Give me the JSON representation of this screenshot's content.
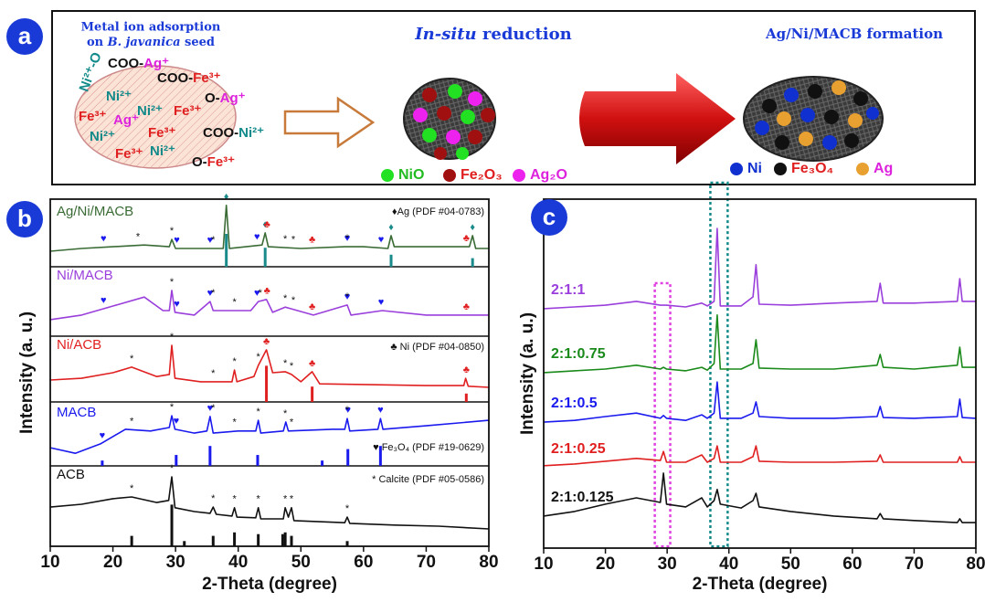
{
  "schematic": {
    "panel_label": "a",
    "heading1": [
      "Metal ion adsorption",
      [
        "on ",
        "B. javanica",
        " seed"
      ]
    ],
    "heading2": [
      "In-situ",
      " reduction"
    ],
    "heading3": "Ag/Ni/MACB formation",
    "ions": [
      [
        {
          "text": "COO-",
          "color": "#111111"
        },
        {
          "text": "Ag⁺",
          "color": "#dd22dd"
        }
      ],
      [
        {
          "text": "COO-",
          "color": "#111111"
        },
        {
          "text": "Fe³⁺",
          "color": "#e02020"
        }
      ],
      [
        {
          "text": "Ni²⁺",
          "color": "#138a8a"
        }
      ],
      [
        {
          "text": "O-",
          "color": "#111111"
        },
        {
          "text": "Ag⁺",
          "color": "#dd22dd"
        }
      ],
      [
        {
          "text": "Fe³⁺",
          "color": "#e02020"
        }
      ],
      [
        {
          "text": "Ag⁺",
          "color": "#dd22dd"
        }
      ],
      [
        {
          "text": "Ni²⁺",
          "color": "#138a8a"
        }
      ],
      [
        {
          "text": "Fe³⁺",
          "color": "#e02020"
        }
      ],
      [
        {
          "text": "Ni²⁺",
          "color": "#138a8a"
        }
      ],
      [
        {
          "text": "Fe³⁺",
          "color": "#e02020"
        }
      ],
      [
        {
          "text": "COO-",
          "color": "#111111"
        },
        {
          "text": "Ni²⁺",
          "color": "#138a8a"
        }
      ],
      [
        {
          "text": "Fe³⁺",
          "color": "#e02020"
        }
      ],
      [
        {
          "text": "Ni²⁺",
          "color": "#138a8a"
        }
      ],
      [
        {
          "text": "O-",
          "color": "#111111"
        },
        {
          "text": "Fe³⁺",
          "color": "#e02020"
        }
      ],
      [
        {
          "text": "Ni²⁺-O",
          "color": "#138a8a"
        }
      ]
    ],
    "legend_left": [
      {
        "label": "NiO",
        "color": "#22e022",
        "text_color": "#22bb22"
      },
      {
        "label": "Fe₂O₃",
        "color": "#a01010",
        "text_color": "#e02020"
      },
      {
        "label": "Ag₂O",
        "color": "#ee22ee",
        "text_color": "#dd22dd"
      }
    ],
    "legend_right": [
      {
        "label": "Ni",
        "color": "#1030d0",
        "text_color": "#1030d0"
      },
      {
        "label": "Fe₃O₄",
        "color": "#111111",
        "text_color": "#e02020"
      },
      {
        "label": "Ag",
        "color": "#e8a030",
        "text_color": "#dd22dd"
      }
    ]
  },
  "chart_data": [
    {
      "type": "line",
      "panel_label": "b",
      "xlabel": "2-Theta (degree)",
      "ylabel": "Intensity (a. u.)",
      "xlim": [
        10,
        80
      ],
      "xticks": [
        10,
        20,
        30,
        40,
        50,
        60,
        70,
        80
      ],
      "ylim": [
        0,
        100
      ],
      "series": [
        {
          "name": "Ag/Ni/MACB",
          "color": "#3a6b35",
          "x": [
            10,
            15,
            20,
            25,
            29,
            29.4,
            30,
            35,
            37.6,
            38.1,
            38.6,
            43.8,
            44.3,
            44.8,
            50,
            57,
            60,
            63.9,
            64.4,
            64.9,
            70,
            76.9,
            77.4,
            77.9,
            80
          ],
          "values": [
            85,
            85.8,
            86.3,
            86.8,
            86.3,
            88.4,
            85.8,
            85.8,
            85.8,
            98.2,
            85.8,
            86.8,
            90.3,
            86.3,
            85.8,
            86.3,
            86.3,
            85.8,
            89.5,
            86.3,
            86.3,
            86.3,
            89.5,
            85.8,
            85.8
          ],
          "markers": [
            {
              "symbol": "♦",
              "color": "#1a8a8a",
              "x": [
                38.1,
                44.3,
                64.4,
                77.4
              ]
            },
            {
              "symbol": "♣",
              "color": "#e02020",
              "x": [
                44.6,
                51.8,
                76.4
              ]
            },
            {
              "symbol": "♥",
              "color": "#1a1aee",
              "x": [
                18.5,
                30.2,
                35.5,
                43,
                57.4,
                62.8
              ]
            },
            {
              "symbol": "*",
              "color": "#111111",
              "x": [
                24,
                29.4,
                36,
                47.5,
                48.8,
                57.4
              ]
            }
          ]
        },
        {
          "name": "Ni/MACB",
          "color": "#9a3fdb",
          "x": [
            10,
            15,
            20,
            25,
            28,
            29,
            29.4,
            29.9,
            33,
            35.5,
            36,
            39.4,
            42,
            43.2,
            44.5,
            45.5,
            47.5,
            48.5,
            52,
            57.4,
            58,
            63,
            70,
            80
          ],
          "values": [
            65.3,
            66.6,
            69.2,
            71.8,
            67.9,
            67.9,
            73.7,
            67.4,
            66.6,
            70.5,
            67.9,
            67.9,
            67.9,
            70.5,
            71.1,
            67.4,
            68.9,
            68.4,
            66.6,
            69.5,
            66.6,
            67.9,
            66.6,
            66.6
          ],
          "markers": [
            {
              "symbol": "♥",
              "color": "#1a1aee",
              "x": [
                18.5,
                30.2,
                35.5,
                43,
                57.4,
                62.8
              ]
            },
            {
              "symbol": "*",
              "color": "#111111",
              "x": [
                29.4,
                36,
                39.4,
                43.5,
                47.5,
                48.8,
                57.4
              ]
            },
            {
              "symbol": "♣",
              "color": "#e02020",
              "x": [
                44.6,
                51.8,
                76.4
              ]
            }
          ]
        },
        {
          "name": "Ni/ACB",
          "color": "#e02020",
          "x": [
            10,
            15,
            20,
            23,
            27,
            29,
            29.4,
            29.9,
            34,
            39,
            39.4,
            39.8,
            42.5,
            43.2,
            44.5,
            45.5,
            47.5,
            48.5,
            50,
            51.8,
            53,
            60,
            70,
            76,
            76.3,
            76.7,
            80
          ],
          "values": [
            47.9,
            48.4,
            50,
            51.6,
            48.9,
            49.5,
            57.9,
            48.4,
            47.4,
            47.4,
            50.8,
            47.4,
            48.9,
            52.1,
            56.6,
            50,
            50.3,
            49.5,
            47.4,
            50.3,
            46.8,
            46.6,
            46.3,
            46.3,
            48.4,
            46.1,
            45.8
          ],
          "markers": [
            {
              "symbol": "*",
              "color": "#111111",
              "x": [
                23,
                29.4,
                36,
                39.4,
                43.2,
                47.5,
                48.5
              ]
            },
            {
              "symbol": "♣",
              "color": "#e02020",
              "x": [
                44.5,
                51.8,
                76.4
              ]
            }
          ]
        },
        {
          "name": "MACB",
          "color": "#1a1aee",
          "x": [
            10,
            14,
            18,
            22,
            26,
            29,
            29.4,
            29.9,
            33,
            35,
            35.5,
            36,
            40,
            42.8,
            43.2,
            43.6,
            47.2,
            47.6,
            48,
            55,
            57,
            57.4,
            57.8,
            62.3,
            62.7,
            63.1,
            70,
            80
          ],
          "values": [
            28.4,
            26.8,
            29.5,
            33.7,
            33.2,
            34.2,
            37.6,
            33.7,
            32.6,
            33.2,
            37.4,
            32.6,
            33.2,
            33.2,
            36.3,
            32.6,
            33.2,
            35.8,
            33.2,
            33.7,
            33.7,
            36.8,
            33.2,
            33.7,
            36.8,
            33.7,
            34.7,
            36.3
          ],
          "markers": [
            {
              "symbol": "♥",
              "color": "#1a1aee",
              "x": [
                18.3,
                30.1,
                35.5,
                57.5,
                62.7
              ]
            },
            {
              "symbol": "*",
              "color": "#111111",
              "x": [
                23,
                29.4,
                36,
                39.4,
                43.2,
                47.5,
                48.5,
                57.4
              ]
            }
          ]
        },
        {
          "name": "ACB",
          "color": "#111111",
          "x": [
            10,
            15,
            20,
            23,
            27,
            28.9,
            29.4,
            29.9,
            33,
            35.5,
            36,
            36.5,
            39,
            39.4,
            39.8,
            42.8,
            43.2,
            43.6,
            47.2,
            47.5,
            48,
            48.5,
            48.9,
            57,
            57.4,
            57.8,
            65,
            72,
            80
          ],
          "values": [
            11.3,
            12.1,
            13.7,
            14.2,
            12.6,
            13.2,
            20,
            11.1,
            10,
            9.5,
            11.3,
            9.2,
            8.7,
            11.1,
            8.4,
            8.2,
            11.1,
            7.9,
            7.9,
            11.1,
            8.4,
            11.1,
            7.4,
            6.8,
            8.4,
            6.6,
            6.1,
            5.8,
            5.0
          ],
          "markers": [
            {
              "symbol": "*",
              "color": "#111111",
              "x": [
                23,
                29.4,
                36,
                39.4,
                43.2,
                47.5,
                48.5,
                57.4
              ]
            }
          ]
        }
      ],
      "references": [
        {
          "name": "♦Ag (PDF #04-0783)",
          "color": "#1a8a8a",
          "base": 80.5,
          "positions": [
            38.1,
            44.3,
            64.4,
            77.4
          ],
          "tops": [
            90,
            86,
            84,
            83
          ]
        },
        {
          "name": "♣ Ni (PDF #04-0850)",
          "color": "#e02020",
          "base": 41.6,
          "positions": [
            44.5,
            51.8,
            76.4
          ],
          "tops": [
            52,
            46,
            44
          ]
        },
        {
          "name": "♥ Fe₃O₄ (PDF #19-0629)",
          "color": "#1a1aee",
          "base": 23.2,
          "positions": [
            18.3,
            30.1,
            35.5,
            43.1,
            53.4,
            57.5,
            62.7
          ],
          "tops": [
            24.7,
            26.3,
            28.9,
            26.3,
            24.7,
            28,
            28.9
          ]
        },
        {
          "name": "* Calcite (PDF #05-0586)",
          "color": "#111111",
          "base": 0,
          "positions": [
            23,
            29.4,
            31.4,
            36,
            39.4,
            43.2,
            47.1,
            47.5,
            48.5,
            57.4
          ],
          "tops": [
            3,
            12,
            1.5,
            3,
            4,
            3.5,
            3.5,
            4,
            3,
            1.5
          ]
        }
      ]
    },
    {
      "type": "line",
      "panel_label": "c",
      "xlabel": "2-Theta (degree)",
      "ylabel": "Intensity (a. u.)",
      "xlim": [
        10,
        80
      ],
      "xticks": [
        10,
        20,
        30,
        40,
        50,
        60,
        70,
        80
      ],
      "ylim": [
        0,
        100
      ],
      "x": [
        10,
        15,
        20,
        25,
        28.9,
        29.4,
        29.9,
        33,
        35.6,
        36.5,
        37.6,
        38.1,
        38.6,
        42,
        43.9,
        44.4,
        44.9,
        50,
        57,
        64,
        64.5,
        65,
        70,
        77,
        77.4,
        77.8,
        80
      ],
      "series": [
        {
          "name": "2:1:1",
          "color": "#9a3fdb",
          "values": [
            68.6,
            69.1,
            69.6,
            70.7,
            69.6,
            69.6,
            69.6,
            69.1,
            70.2,
            69.4,
            70.7,
            91.6,
            69.4,
            69.4,
            72.0,
            81.2,
            69.9,
            69.6,
            70.2,
            70.7,
            75.9,
            70.2,
            70.2,
            70.7,
            77.2,
            70.7,
            70.7
          ]
        },
        {
          "name": "2:1:0.75",
          "color": "#1a8a1a",
          "values": [
            50.3,
            50.8,
            51.3,
            52.4,
            51.3,
            51.8,
            51.3,
            50.8,
            51.8,
            51.0,
            52.9,
            66.8,
            51.3,
            51.3,
            52.9,
            59.7,
            51.6,
            51.3,
            51.3,
            52.4,
            55.5,
            51.8,
            51.3,
            52.4,
            57.6,
            51.8,
            51.8
          ]
        },
        {
          "name": "2:1:0.5",
          "color": "#1a1aee",
          "values": [
            36.1,
            36.6,
            37.7,
            38.7,
            37.2,
            38.0,
            37.2,
            36.6,
            38.2,
            37.2,
            38.7,
            47.6,
            37.2,
            37.2,
            38.7,
            41.9,
            37.7,
            37.2,
            37.2,
            37.7,
            40.6,
            37.4,
            37.2,
            37.7,
            42.7,
            37.4,
            37.2
          ]
        },
        {
          "name": "2:1:0.25",
          "color": "#e02020",
          "values": [
            23.6,
            24.1,
            24.9,
            25.7,
            25.1,
            27.7,
            24.6,
            24.6,
            26.7,
            24.6,
            25.7,
            29.3,
            24.6,
            24.6,
            26.2,
            29.3,
            24.9,
            24.6,
            24.6,
            24.9,
            26.7,
            24.6,
            24.6,
            24.6,
            26.2,
            24.6,
            24.6
          ]
        },
        {
          "name": "2:1:0.125",
          "color": "#111111",
          "values": [
            9.2,
            10.5,
            12.6,
            14.4,
            13.1,
            21.5,
            12.6,
            11.8,
            14.4,
            11.8,
            13.6,
            16.8,
            12.6,
            11.5,
            13.6,
            15.7,
            11.8,
            10.5,
            9.2,
            8.4,
            9.9,
            8.4,
            7.9,
            7.3,
            8.4,
            7.3,
            7.3
          ]
        }
      ],
      "highlights": [
        {
          "color": "#e040e0",
          "xlim": [
            28,
            30.5
          ],
          "ylim": [
            0.5,
            75.9
          ]
        },
        {
          "color": "#138a8a",
          "xlim": [
            37,
            39.8
          ],
          "ylim": [
            0.5,
            104.7
          ]
        }
      ]
    }
  ]
}
